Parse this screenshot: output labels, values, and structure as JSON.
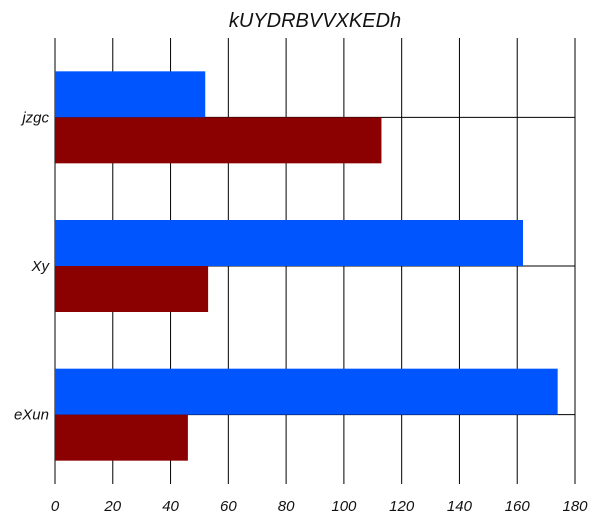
{
  "chart_data": {
    "type": "bar",
    "orientation": "horizontal",
    "title": "kUYDRBVVXKEDh",
    "xlabel": "",
    "ylabel": "",
    "categories": [
      "jzgc",
      "Xy",
      "eXun"
    ],
    "series": [
      {
        "color": "#0055ff",
        "values": [
          52,
          162,
          174
        ]
      },
      {
        "color": "#8b0000",
        "values": [
          113,
          53,
          46
        ]
      }
    ],
    "xlim": [
      0,
      180
    ],
    "x_ticks": [
      0,
      20,
      40,
      60,
      80,
      100,
      120,
      140,
      160,
      180
    ],
    "x_tick_labels": [
      "0",
      "20",
      "40",
      "60",
      "80",
      "100",
      "120",
      "140",
      "160",
      "180"
    ],
    "grid": true,
    "legend": "none"
  }
}
